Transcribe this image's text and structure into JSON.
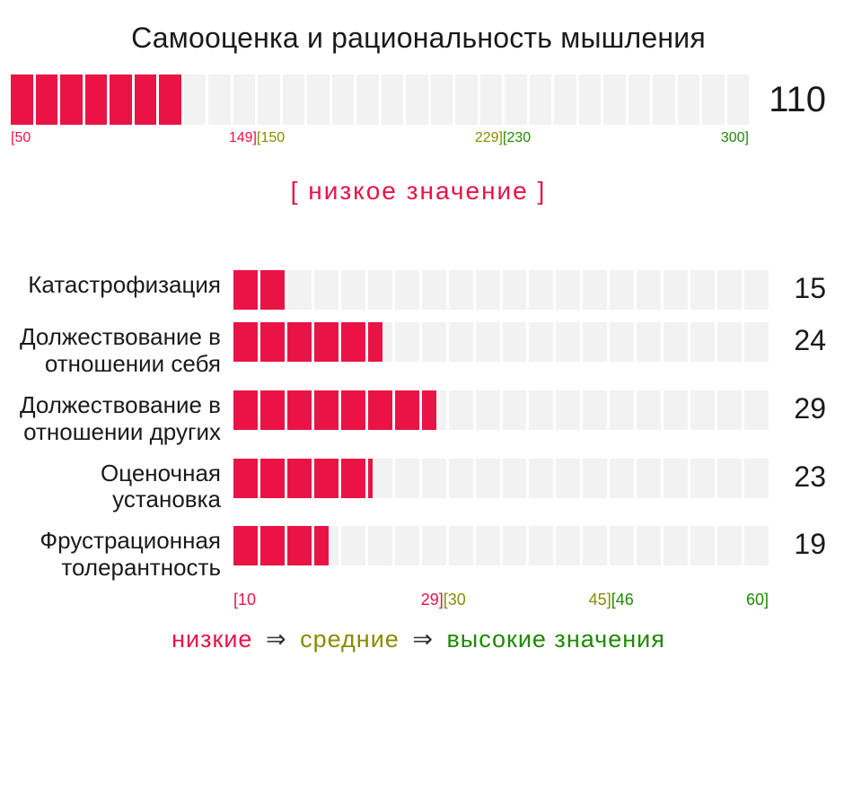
{
  "colors": {
    "bar_fill": "#e91345",
    "seg_empty": "#f2f2f2",
    "low": "#e91345",
    "mid": "#888c00",
    "high": "#1e8a00",
    "text": "#1a1a1a"
  },
  "main": {
    "title": "Самооценка и рациональность мышления",
    "value": 110,
    "min": 50,
    "max": 300,
    "segments": 30,
    "ranges": [
      {
        "lo": "[50",
        "hi": "149]",
        "color_key": "low"
      },
      {
        "lo": "[150",
        "hi": "229]",
        "color_key": "mid"
      },
      {
        "lo": "[230",
        "hi": "300]",
        "color_key": "high"
      }
    ],
    "interpretation": "[ низкое значение ]",
    "interpretation_color_key": "low"
  },
  "sub": {
    "min": 10,
    "max": 60,
    "segments": 20,
    "items": [
      {
        "label": "Катастрофизация",
        "value": 15
      },
      {
        "label": "Должествование в отношении себя",
        "value": 24
      },
      {
        "label": "Должествование в отношении других",
        "value": 29
      },
      {
        "label": "Оценочная установка",
        "value": 23
      },
      {
        "label": "Фрустрационная толерантность",
        "value": 19
      }
    ],
    "ranges": [
      {
        "lo": "[10",
        "hi": "29]",
        "color_key": "low"
      },
      {
        "lo": "[30",
        "hi": "45]",
        "color_key": "mid"
      },
      {
        "lo": "[46",
        "hi": "60]",
        "color_key": "high"
      }
    ]
  },
  "legend": {
    "low": "низкие",
    "mid": "средние",
    "high": "высокие значения",
    "arrow": "⇒"
  }
}
